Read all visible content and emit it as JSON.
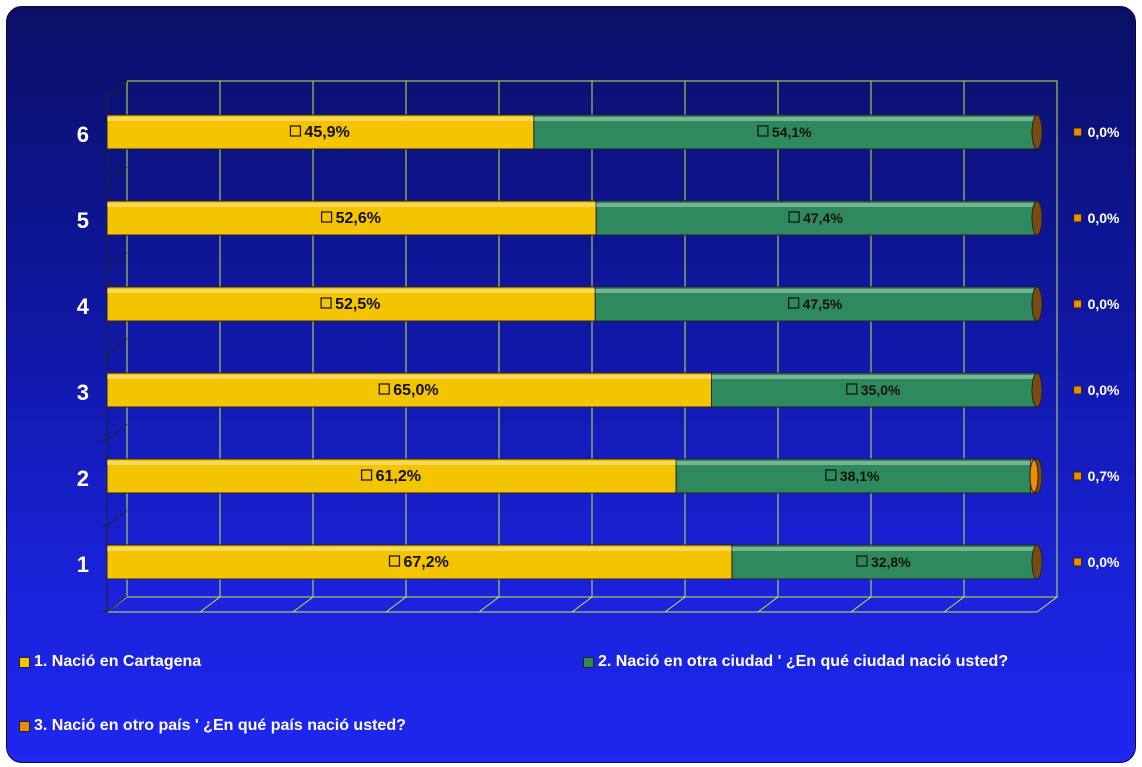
{
  "chart_data": {
    "type": "bar",
    "orientation": "horizontal",
    "stacked": true,
    "percent_stacked": true,
    "categories": [
      "1",
      "2",
      "3",
      "4",
      "5",
      "6"
    ],
    "series": [
      {
        "name": "1. Nació en Cartagena",
        "color": "#f5c400",
        "values": [
          67.2,
          61.2,
          65.0,
          52.5,
          52.6,
          45.9
        ],
        "labels": [
          "67,2%",
          "61,2%",
          "65,0%",
          "52,5%",
          "52,6%",
          "45,9%"
        ]
      },
      {
        "name": "2. Nació en otra ciudad ' ¿En qué ciudad nació usted?",
        "color": "#2e8a5c",
        "values": [
          32.8,
          38.1,
          35.0,
          47.5,
          47.4,
          54.1
        ],
        "labels": [
          "32,8%",
          "38,1%",
          "35,0%",
          "47,5%",
          "47,4%",
          "54,1%"
        ]
      },
      {
        "name": "3. Nació en otro país  ' ¿En qué país nació usted?",
        "color": "#f08a00",
        "values": [
          0.0,
          0.7,
          0.0,
          0.0,
          0.0,
          0.0
        ],
        "labels": [
          "0,0%",
          "0,7%",
          "0,0%",
          "0,0%",
          "0,0%",
          "0,0%"
        ]
      }
    ],
    "xlim": [
      0,
      100
    ],
    "grid": true,
    "legend_position": "bottom"
  }
}
